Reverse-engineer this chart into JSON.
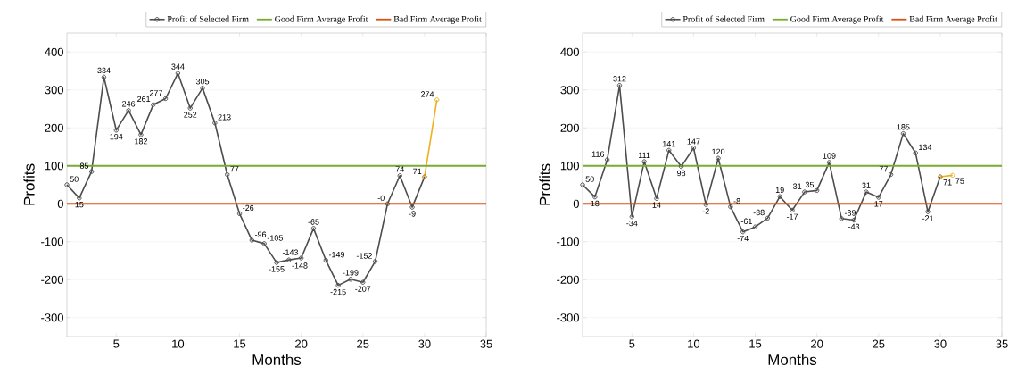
{
  "chart_data": [
    {
      "type": "line",
      "xlabel": "Months",
      "ylabel": "Profits",
      "xlim": [
        1,
        35
      ],
      "ylim": [
        -350,
        450
      ],
      "xticks": [
        5,
        10,
        15,
        20,
        25,
        30,
        35
      ],
      "yticks": [
        -300,
        -200,
        -100,
        0,
        100,
        200,
        300,
        400
      ],
      "grid": "y",
      "legend": "top",
      "marker": "circle",
      "line_style": "solid",
      "series": [
        {
          "name": "Profit of Selected Firm",
          "color": "#4d4d4d",
          "x": [
            1,
            2,
            3,
            4,
            5,
            6,
            7,
            8,
            9,
            10,
            11,
            12,
            13,
            14,
            15,
            16,
            17,
            18,
            19,
            20,
            21,
            22,
            23,
            24,
            25,
            26,
            27,
            28,
            29,
            30
          ],
          "values": [
            50,
            15,
            85,
            334,
            194,
            246,
            182,
            261,
            277,
            344,
            252,
            305,
            213,
            77,
            -26,
            -96,
            -105,
            -155,
            -148,
            -143,
            -65,
            -149,
            -215,
            -199,
            -207,
            -152,
            0,
            74,
            -9,
            71
          ],
          "value_labels": [
            "50",
            "15",
            "85",
            "334",
            "194",
            "246",
            "182",
            "261",
            "277",
            "344",
            "252",
            "305",
            "213",
            "77",
            "-26",
            "-96",
            "-105",
            "-155",
            "-148",
            "-143",
            "-65",
            "-149",
            "-215",
            "-199",
            "-207",
            "-152",
            "-0",
            "74",
            "-9",
            null
          ]
        },
        {
          "color": "#edb120",
          "x": [
            30,
            31
          ],
          "values": [
            71,
            274
          ],
          "value_labels": [
            "71",
            "274"
          ]
        }
      ],
      "ref_lines": [
        {
          "axis": "y",
          "value": 100,
          "label": "Good Firm Average Profit",
          "color": "#77ac30"
        },
        {
          "axis": "y",
          "value": 0,
          "label": "Bad Firm Average Profit",
          "color": "#d95319"
        }
      ]
    },
    {
      "type": "line",
      "xlabel": "Months",
      "ylabel": "Profits",
      "xlim": [
        1,
        35
      ],
      "ylim": [
        -350,
        450
      ],
      "xticks": [
        5,
        10,
        15,
        20,
        25,
        30,
        35
      ],
      "yticks": [
        -300,
        -200,
        -100,
        0,
        100,
        200,
        300,
        400
      ],
      "grid": "y",
      "legend": "top",
      "marker": "circle",
      "line_style": "solid",
      "series": [
        {
          "name": "Profit of Selected Firm",
          "color": "#4d4d4d",
          "x": [
            1,
            2,
            3,
            4,
            5,
            6,
            7,
            8,
            9,
            10,
            11,
            12,
            13,
            14,
            15,
            16,
            17,
            18,
            19,
            20,
            21,
            22,
            23,
            24,
            25,
            26,
            27,
            28,
            29,
            30
          ],
          "values": [
            50,
            18,
            116,
            312,
            -34,
            111,
            14,
            141,
            98,
            147,
            -2,
            120,
            -8,
            -74,
            -61,
            -38,
            19,
            -17,
            31,
            35,
            109,
            -39,
            -43,
            31,
            17,
            77,
            185,
            134,
            -21,
            71
          ],
          "value_labels": [
            "50",
            "18",
            "116",
            "312",
            "-34",
            "111",
            "14",
            "141",
            "98",
            "147",
            "-2",
            "120",
            "-8",
            "-74",
            "-61",
            "-38",
            "19",
            "-17",
            "31",
            "35",
            "109",
            "-39",
            "-43",
            "31",
            "17",
            "77",
            "185",
            "134",
            "-21",
            null
          ]
        },
        {
          "color": "#edb120",
          "x": [
            30,
            31
          ],
          "values": [
            71,
            75
          ],
          "value_labels": [
            "71",
            "75"
          ]
        }
      ],
      "ref_lines": [
        {
          "axis": "y",
          "value": 100,
          "label": "Good Firm Average Profit",
          "color": "#77ac30"
        },
        {
          "axis": "y",
          "value": 0,
          "label": "Bad Firm Average Profit",
          "color": "#d95319"
        }
      ]
    }
  ]
}
